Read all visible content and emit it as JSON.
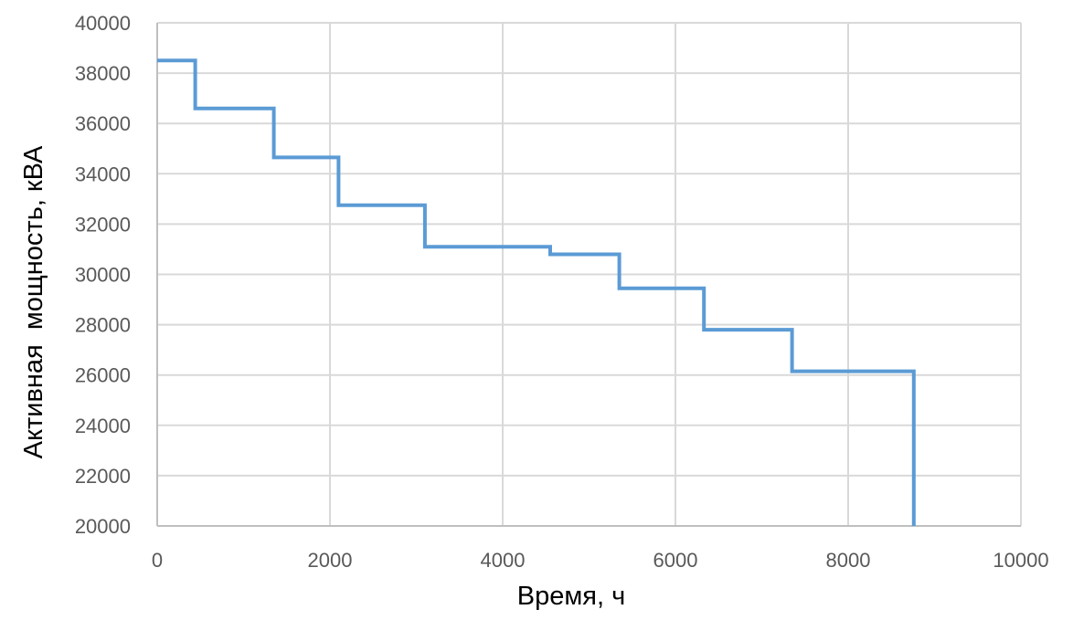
{
  "chart_data": {
    "type": "line",
    "step": true,
    "title": "",
    "xlabel": "Время, ч",
    "ylabel": "Активная  мощность, кВА",
    "xlim": [
      0,
      10000
    ],
    "ylim": [
      20000,
      40000
    ],
    "xticks": [
      0,
      2000,
      4000,
      6000,
      8000,
      10000
    ],
    "yticks": [
      20000,
      22000,
      24000,
      26000,
      28000,
      30000,
      32000,
      34000,
      36000,
      38000,
      40000
    ],
    "xtick_labels": [
      "0",
      "2000",
      "4000",
      "6000",
      "8000",
      "10000"
    ],
    "ytick_labels": [
      "20000",
      "22000",
      "24000",
      "26000",
      "28000",
      "30000",
      "32000",
      "34000",
      "36000",
      "38000",
      "40000"
    ],
    "grid": true,
    "legend": "none",
    "series": [
      {
        "color": "#5b9bd5",
        "x": [
          0,
          440,
          440,
          1350,
          1350,
          2100,
          2100,
          3100,
          3100,
          4550,
          4550,
          5350,
          5350,
          6330,
          6330,
          7350,
          7350,
          8760,
          8760
        ],
        "y": [
          38500,
          38500,
          36600,
          36600,
          34650,
          34650,
          32750,
          32750,
          31100,
          31100,
          30800,
          30800,
          29450,
          29450,
          27800,
          27800,
          26150,
          26150,
          20000
        ]
      }
    ]
  }
}
